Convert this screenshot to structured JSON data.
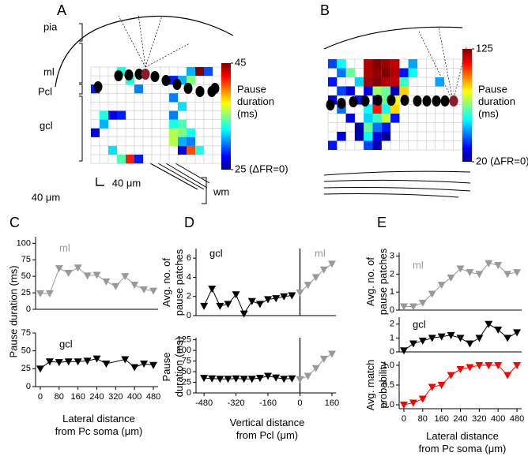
{
  "chart_data": [
    {
      "type": "heatmap",
      "panel_label": "A",
      "labels": [
        "pia",
        "ml",
        "Pcl",
        "gcl",
        "wm"
      ],
      "scale_labels": [
        "40 μm",
        "40 μm"
      ],
      "colorbar_label": "Pause\nduration\n(ms)",
      "clim": [
        25,
        45
      ],
      "cticks": [
        45,
        {
          "value": 25,
          "label": "25 (ΔFR=0)"
        }
      ],
      "values": [
        [
          null,
          null,
          null,
          33,
          null,
          null,
          null,
          null,
          null,
          null,
          null,
          31,
          45,
          29,
          null
        ],
        [
          null,
          null,
          null,
          null,
          33,
          null,
          null,
          null,
          null,
          28,
          31,
          35,
          null,
          null,
          null
        ],
        [
          28,
          null,
          null,
          null,
          null,
          30,
          null,
          null,
          null,
          null,
          null,
          null,
          null,
          null,
          null
        ],
        [
          null,
          null,
          null,
          null,
          null,
          null,
          null,
          null,
          null,
          30,
          null,
          null,
          null,
          null,
          null
        ],
        [
          null,
          null,
          null,
          null,
          null,
          null,
          null,
          null,
          null,
          null,
          32,
          null,
          null,
          null,
          null
        ],
        [
          null,
          33,
          27,
          28,
          null,
          null,
          null,
          null,
          null,
          30,
          null,
          null,
          null,
          null,
          null
        ],
        [
          null,
          31,
          null,
          null,
          null,
          null,
          null,
          null,
          null,
          33,
          34,
          null,
          null,
          null,
          null
        ],
        [
          27,
          null,
          null,
          null,
          null,
          null,
          null,
          null,
          null,
          36,
          35,
          33,
          null,
          null,
          null
        ],
        [
          null,
          null,
          null,
          null,
          null,
          null,
          null,
          null,
          null,
          36,
          31,
          30,
          null,
          null,
          null
        ],
        [
          null,
          null,
          32,
          null,
          null,
          null,
          null,
          null,
          null,
          null,
          27,
          41,
          33,
          null,
          null
        ],
        [
          null,
          null,
          null,
          34,
          42,
          28,
          null,
          null,
          null,
          null,
          null,
          null,
          null,
          null,
          null
        ]
      ]
    },
    {
      "type": "heatmap",
      "panel_label": "B",
      "colorbar_label": "Pause\nduration\n(ms)",
      "clim": [
        20,
        125
      ],
      "cticks": [
        125,
        {
          "value": 20,
          "label": "20 (ΔFR=0)"
        }
      ],
      "values": [
        [
          40,
          60,
          null,
          null,
          120,
          125,
          122,
          118,
          null,
          50,
          null,
          null,
          null,
          null,
          null
        ],
        [
          null,
          45,
          70,
          null,
          120,
          123,
          125,
          120,
          35,
          60,
          null,
          null,
          null,
          null,
          null
        ],
        [
          35,
          null,
          null,
          55,
          122,
          125,
          120,
          118,
          65,
          null,
          null,
          null,
          50,
          null,
          null
        ],
        [
          null,
          40,
          30,
          null,
          30,
          75,
          70,
          25,
          90,
          null,
          null,
          null,
          null,
          null,
          null
        ],
        [
          30,
          null,
          null,
          35,
          null,
          25,
          70,
          85,
          null,
          null,
          null,
          null,
          null,
          null,
          null
        ],
        [
          null,
          45,
          null,
          null,
          60,
          110,
          60,
          90,
          null,
          null,
          null,
          null,
          null,
          null,
          null
        ],
        [
          null,
          null,
          30,
          null,
          55,
          65,
          80,
          35,
          null,
          null,
          null,
          null,
          null,
          null,
          null
        ],
        [
          null,
          null,
          null,
          25,
          70,
          45,
          35,
          null,
          null,
          null,
          null,
          null,
          null,
          null,
          null
        ],
        [
          null,
          30,
          null,
          25,
          60,
          30,
          22,
          null,
          null,
          null,
          null,
          null,
          null,
          null,
          null
        ],
        [
          35,
          null,
          null,
          null,
          40,
          25,
          null,
          null,
          null,
          null,
          null,
          null,
          null,
          null,
          null
        ]
      ]
    },
    {
      "type": "line",
      "panel_label": "C",
      "ylabel": "Pause duration (ms)",
      "xlim": [
        -20,
        500
      ],
      "ylim": [
        0,
        110
      ],
      "yticks": [
        0,
        25,
        50,
        75,
        100
      ],
      "series": [
        {
          "name": "ml",
          "color": "#999999",
          "x": [
            0,
            40,
            80,
            120,
            160,
            200,
            240,
            280,
            320,
            360,
            400,
            440,
            480
          ],
          "values": [
            24,
            24,
            62,
            55,
            63,
            51,
            52,
            42,
            35,
            50,
            37,
            30,
            28
          ]
        }
      ]
    },
    {
      "type": "line",
      "xlabel": "Lateral distance\nfrom Pc soma (μm)",
      "xlim": [
        -20,
        500
      ],
      "ylim": [
        0,
        75
      ],
      "yticks": [
        0,
        25,
        50,
        75
      ],
      "xticks": [
        0,
        80,
        160,
        240,
        320,
        400,
        480
      ],
      "series": [
        {
          "name": "gcl",
          "color": "#000000",
          "x": [
            0,
            40,
            80,
            120,
            160,
            200,
            240,
            280,
            360,
            400,
            440,
            480
          ],
          "values": [
            25,
            35,
            34,
            35,
            35,
            36,
            39,
            32,
            38,
            27,
            32,
            30
          ]
        }
      ]
    },
    {
      "type": "line",
      "panel_label": "D",
      "ylabel": "Avg. no. of\npause patches",
      "xlim": [
        -520,
        180
      ],
      "ylim": [
        0,
        7
      ],
      "yticks": [
        0,
        2,
        4,
        6
      ],
      "series": [
        {
          "name": "gcl",
          "color": "#000000",
          "x": [
            -480,
            -440,
            -400,
            -360,
            -320,
            -280,
            -240,
            -200,
            -160,
            -120,
            -80,
            -40
          ],
          "values": [
            1,
            2.8,
            1,
            1.2,
            2.2,
            0.2,
            1.5,
            1.2,
            1.7,
            1.8,
            2,
            2.1
          ]
        },
        {
          "name": "ml",
          "color": "#999999",
          "x": [
            0,
            40,
            80,
            120,
            160
          ],
          "values": [
            2.4,
            3.2,
            4,
            4.8,
            5.4
          ]
        }
      ]
    },
    {
      "type": "line",
      "ylabel": "Pause\nduration (ms)",
      "xlabel": "Vertical distance\nfrom Pcl (μm)",
      "xlim": [
        -520,
        180
      ],
      "ylim": [
        0,
        130
      ],
      "yticks": [
        0,
        25,
        50,
        75,
        100,
        125
      ],
      "xticks": [
        -480,
        -320,
        -160,
        0,
        160
      ],
      "series": [
        {
          "color": "#000000",
          "x": [
            -480,
            -440,
            -400,
            -360,
            -320,
            -280,
            -240,
            -200,
            -160,
            -120,
            -80,
            -40
          ],
          "values": [
            35,
            34,
            33,
            33,
            34,
            33,
            33,
            35,
            40,
            36,
            33,
            34
          ]
        },
        {
          "color": "#999999",
          "x": [
            0,
            40,
            80,
            120,
            160
          ],
          "values": [
            32,
            40,
            58,
            80,
            92
          ]
        }
      ]
    },
    {
      "type": "line",
      "panel_label": "E",
      "ylabel": "Avg. no. of\npause patches",
      "xlim": [
        -20,
        500
      ],
      "ylim": [
        0,
        3.2
      ],
      "yticks": [
        0,
        1,
        2,
        3
      ],
      "series": [
        {
          "name": "ml",
          "color": "#999999",
          "x": [
            0,
            40,
            80,
            120,
            160,
            200,
            240,
            280,
            320,
            360,
            400,
            440,
            480
          ],
          "values": [
            0.2,
            0.2,
            0.4,
            0.9,
            1.4,
            1.8,
            2.3,
            2.1,
            2.0,
            2.6,
            2.5,
            2.0,
            2.1
          ]
        }
      ]
    },
    {
      "type": "line",
      "xlim": [
        -20,
        500
      ],
      "ylim": [
        0,
        2.5
      ],
      "yticks": [
        0,
        1,
        2
      ],
      "series": [
        {
          "name": "gcl",
          "color": "#000000",
          "x": [
            0,
            40,
            80,
            120,
            160,
            200,
            240,
            280,
            320,
            360,
            400,
            440,
            480
          ],
          "values": [
            0.1,
            0.6,
            0.8,
            1.0,
            1.1,
            1.2,
            1.0,
            0.6,
            1.0,
            2.0,
            1.6,
            1.0,
            1.4
          ]
        }
      ]
    },
    {
      "type": "line",
      "ylabel": "Avg. match\nprobability",
      "xlabel": "Lateral distance\nfrom Pc soma (μm)",
      "xlim": [
        -20,
        500
      ],
      "ylim": [
        -0.1,
        1.1
      ],
      "yticks": [
        {
          "value": 0,
          "label": "0.0"
        },
        {
          "value": 0.5,
          "label": "0.5"
        },
        {
          "value": 1,
          "label": "1.0"
        }
      ],
      "xticks": [
        0,
        80,
        160,
        240,
        320,
        400,
        480
      ],
      "series": [
        {
          "color": "#ff0000",
          "x": [
            0,
            40,
            80,
            120,
            160,
            200,
            240,
            280,
            320,
            360,
            400,
            440,
            480
          ],
          "values": [
            0,
            0.05,
            0.15,
            0.45,
            0.5,
            0.75,
            0.9,
            0.95,
            1,
            1,
            1,
            0.75,
            1
          ]
        }
      ]
    }
  ]
}
